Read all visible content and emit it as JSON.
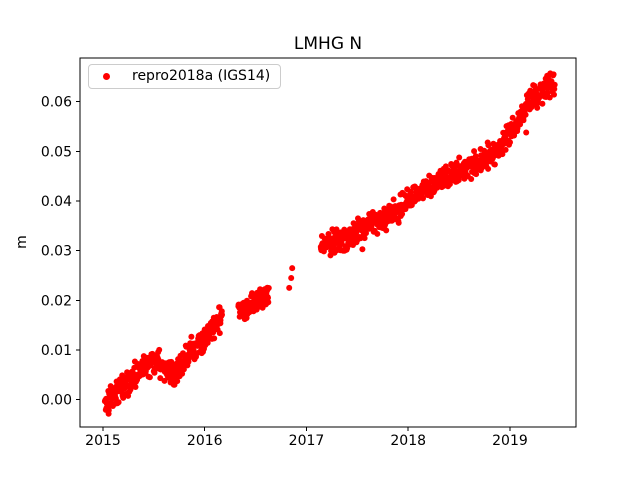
{
  "chart_data": {
    "type": "scatter",
    "title": "LMHG N",
    "xlabel": "",
    "ylabel": "m",
    "grid": false,
    "legend_position": "upper left",
    "xlim": [
      2014.774,
      2019.649
    ],
    "ylim": [
      -0.0055,
      0.0688
    ],
    "xticks": [
      {
        "value": 2015,
        "label": "2015"
      },
      {
        "value": 2016,
        "label": "2016"
      },
      {
        "value": 2017,
        "label": "2017"
      },
      {
        "value": 2018,
        "label": "2018"
      },
      {
        "value": 2019,
        "label": "2019"
      }
    ],
    "yticks": [
      {
        "value": 0.0,
        "label": "0.00"
      },
      {
        "value": 0.01,
        "label": "0.01"
      },
      {
        "value": 0.02,
        "label": "0.02"
      },
      {
        "value": 0.03,
        "label": "0.03"
      },
      {
        "value": 0.04,
        "label": "0.04"
      },
      {
        "value": 0.05,
        "label": "0.05"
      },
      {
        "value": 0.06,
        "label": "0.06"
      }
    ],
    "series": [
      {
        "name": "repro2018a (IGS14)",
        "color": "#ff0000",
        "marker": "dot",
        "marker_radius_px": 3,
        "segments": [
          {
            "x_start": 2015.02,
            "x_end": 2016.17,
            "n": 330,
            "noise": 0.0013,
            "trend": [
              [
                2015.02,
                -0.0005
              ],
              [
                2015.1,
                0.001
              ],
              [
                2015.2,
                0.003
              ],
              [
                2015.32,
                0.0048
              ],
              [
                2015.42,
                0.007
              ],
              [
                2015.5,
                0.008
              ],
              [
                2015.62,
                0.006
              ],
              [
                2015.72,
                0.006
              ],
              [
                2015.82,
                0.0085
              ],
              [
                2015.92,
                0.011
              ],
              [
                2016.02,
                0.0135
              ],
              [
                2016.1,
                0.0155
              ],
              [
                2016.17,
                0.0165
              ]
            ]
          },
          {
            "x_start": 2016.33,
            "x_end": 2016.63,
            "n": 85,
            "noise": 0.0011,
            "trend": [
              [
                2016.33,
                0.018
              ],
              [
                2016.48,
                0.0198
              ],
              [
                2016.63,
                0.0215
              ]
            ]
          },
          {
            "x_start": 2017.14,
            "x_end": 2019.44,
            "n": 640,
            "noise": 0.0012,
            "trend": [
              [
                2017.14,
                0.0305
              ],
              [
                2017.3,
                0.032
              ],
              [
                2017.5,
                0.034
              ],
              [
                2017.7,
                0.036
              ],
              [
                2017.9,
                0.038
              ],
              [
                2018.0,
                0.0405
              ],
              [
                2018.1,
                0.042
              ],
              [
                2018.3,
                0.044
              ],
              [
                2018.5,
                0.046
              ],
              [
                2018.7,
                0.048
              ],
              [
                2018.9,
                0.0505
              ],
              [
                2019.0,
                0.0535
              ],
              [
                2019.1,
                0.057
              ],
              [
                2019.2,
                0.0605
              ],
              [
                2019.3,
                0.062
              ],
              [
                2019.38,
                0.0635
              ],
              [
                2019.44,
                0.064
              ]
            ]
          }
        ],
        "extra_points": [
          [
            2016.83,
            0.0225
          ],
          [
            2016.85,
            0.0245
          ],
          [
            2016.86,
            0.0265
          ],
          [
            2017.55,
            0.0303
          ],
          [
            2018.77,
            0.0478
          ],
          [
            2019.16,
            0.0538
          ],
          [
            2019.26,
            0.0598
          ]
        ]
      }
    ]
  }
}
